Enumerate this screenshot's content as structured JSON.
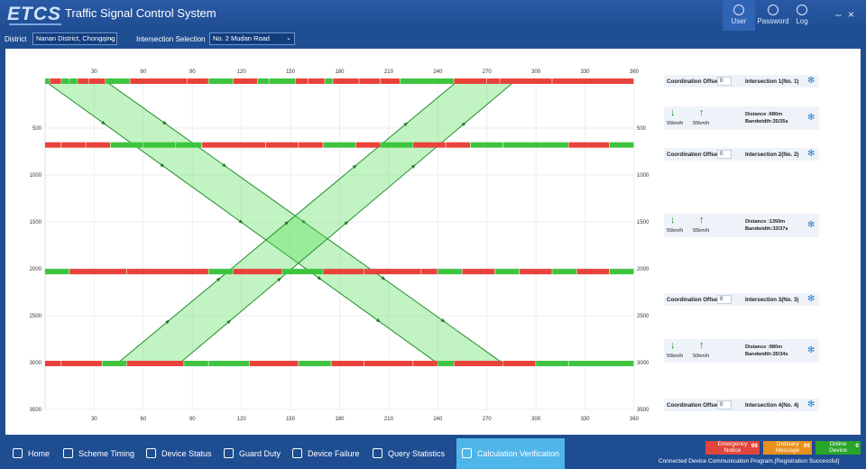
{
  "header": {
    "logo": "ETCS",
    "title": "Traffic Signal Control System",
    "buttons": [
      {
        "label": "User",
        "icon": "user-icon"
      },
      {
        "label": "Password",
        "icon": "lock-icon"
      },
      {
        "label": "Log",
        "icon": "log-icon"
      }
    ],
    "minimize": "–",
    "close": "×"
  },
  "filters": {
    "district_label": "District",
    "district_value": "Nanan District, Chongqing",
    "intersection_label": "Intersection Selection",
    "intersection_value": "No. 2 Mudan Road"
  },
  "chart_data": {
    "type": "line",
    "x_ticks": [
      "30",
      "60",
      "90",
      "120",
      "150",
      "180",
      "210",
      "240",
      "270",
      "300",
      "330",
      "360"
    ],
    "xlim": [
      0,
      360
    ],
    "y_ticks": [
      "500",
      "1000",
      "1500",
      "2000",
      "2500",
      "3000",
      "3500"
    ],
    "ylim": [
      0,
      3500
    ],
    "intersections": [
      {
        "distance": 0,
        "bars": [
          [
            0,
            3,
            "g"
          ],
          [
            3,
            10,
            "r"
          ],
          [
            10,
            15,
            "g"
          ],
          [
            15,
            20,
            "g"
          ],
          [
            20,
            27,
            "r"
          ],
          [
            27,
            37,
            "r"
          ],
          [
            37,
            52,
            "g"
          ],
          [
            52,
            87,
            "r"
          ],
          [
            87,
            100,
            "r"
          ],
          [
            100,
            115,
            "g"
          ],
          [
            115,
            130,
            "r"
          ],
          [
            130,
            137,
            "g"
          ],
          [
            137,
            153,
            "g"
          ],
          [
            153,
            161,
            "r"
          ],
          [
            161,
            171,
            "r"
          ],
          [
            171,
            176,
            "g"
          ],
          [
            176,
            192,
            "r"
          ],
          [
            192,
            205,
            "r"
          ],
          [
            205,
            217,
            "r"
          ],
          [
            217,
            250,
            "g"
          ],
          [
            250,
            270,
            "r"
          ],
          [
            270,
            278,
            "r"
          ],
          [
            278,
            310,
            "r"
          ],
          [
            310,
            360,
            "r"
          ]
        ]
      },
      {
        "distance": 680,
        "bars": [
          [
            0,
            10,
            "r"
          ],
          [
            10,
            25,
            "r"
          ],
          [
            25,
            40,
            "r"
          ],
          [
            40,
            60,
            "g"
          ],
          [
            60,
            80,
            "g"
          ],
          [
            80,
            96,
            "g"
          ],
          [
            96,
            135,
            "r"
          ],
          [
            135,
            155,
            "r"
          ],
          [
            155,
            170,
            "r"
          ],
          [
            170,
            190,
            "g"
          ],
          [
            190,
            205,
            "r"
          ],
          [
            205,
            225,
            "g"
          ],
          [
            225,
            245,
            "r"
          ],
          [
            245,
            260,
            "r"
          ],
          [
            260,
            280,
            "g"
          ],
          [
            280,
            320,
            "g"
          ],
          [
            320,
            345,
            "r"
          ],
          [
            345,
            360,
            "g"
          ]
        ]
      },
      {
        "distance": 2030,
        "bars": [
          [
            0,
            15,
            "g"
          ],
          [
            15,
            50,
            "r"
          ],
          [
            50,
            100,
            "r"
          ],
          [
            100,
            115,
            "g"
          ],
          [
            115,
            145,
            "r"
          ],
          [
            145,
            170,
            "g"
          ],
          [
            170,
            195,
            "r"
          ],
          [
            195,
            230,
            "r"
          ],
          [
            230,
            240,
            "r"
          ],
          [
            240,
            255,
            "g"
          ],
          [
            255,
            275,
            "r"
          ],
          [
            275,
            290,
            "g"
          ],
          [
            290,
            310,
            "r"
          ],
          [
            310,
            325,
            "g"
          ],
          [
            325,
            345,
            "r"
          ],
          [
            345,
            360,
            "g"
          ]
        ]
      },
      {
        "distance": 3010,
        "bars": [
          [
            0,
            10,
            "r"
          ],
          [
            10,
            35,
            "r"
          ],
          [
            35,
            50,
            "g"
          ],
          [
            50,
            85,
            "r"
          ],
          [
            85,
            100,
            "g"
          ],
          [
            100,
            125,
            "g"
          ],
          [
            125,
            155,
            "r"
          ],
          [
            155,
            175,
            "g"
          ],
          [
            175,
            195,
            "r"
          ],
          [
            195,
            225,
            "r"
          ],
          [
            225,
            240,
            "r"
          ],
          [
            240,
            250,
            "g"
          ],
          [
            250,
            280,
            "r"
          ],
          [
            280,
            300,
            "r"
          ],
          [
            300,
            320,
            "g"
          ],
          [
            320,
            360,
            "g"
          ]
        ]
      }
    ],
    "bands": [
      {
        "direction": "down",
        "edges": [
          [
            0,
            0,
            240,
            3010
          ],
          [
            37,
            0,
            280,
            3010
          ]
        ]
      },
      {
        "direction": "up",
        "edges": [
          [
            44,
            3010,
            252,
            0
          ],
          [
            82,
            3010,
            287,
            0
          ]
        ]
      }
    ]
  },
  "side": {
    "coordination_label": "Coordination Offset:",
    "intersections": [
      {
        "offset": "0",
        "name": "Intersection 1(No. 1)"
      },
      {
        "offset": "0",
        "name": "Intersection 2(No. 2)"
      },
      {
        "offset": "0",
        "name": "Intersection 3(No. 3)"
      },
      {
        "offset": "0",
        "name": "Intersection 4(No. 4)"
      }
    ],
    "segments": [
      {
        "speed_down": "55km/h",
        "speed_up": "55km/h",
        "distance": "Distance :680m",
        "bandwidth": "Bandwidth:35/35s"
      },
      {
        "speed_down": "55km/h",
        "speed_up": "55km/h",
        "distance": "Distance :1350m",
        "bandwidth": "Bandwidth:33/37s"
      },
      {
        "speed_down": "50km/h",
        "speed_up": "50km/h",
        "distance": "Distance :980m",
        "bandwidth": "Bandwidth:35/34s"
      }
    ]
  },
  "nav": {
    "items": [
      "Home",
      "Scheme Timing",
      "Device Status",
      "Guard Duty",
      "Device Failure",
      "Query Statistics",
      "Calculation Verification"
    ]
  },
  "badges": [
    {
      "line1": "Emergency",
      "line2": "Notice",
      "count": "99",
      "color": "#e0463c"
    },
    {
      "line1": "Ordinary",
      "line2": "Message",
      "count": "99",
      "color": "#e8901c"
    },
    {
      "line1": "Online",
      "line2": "Device",
      "count": "0",
      "color": "#2aa52a"
    }
  ],
  "status_text": "Connected Device Communication Program.[Registration Successful]"
}
